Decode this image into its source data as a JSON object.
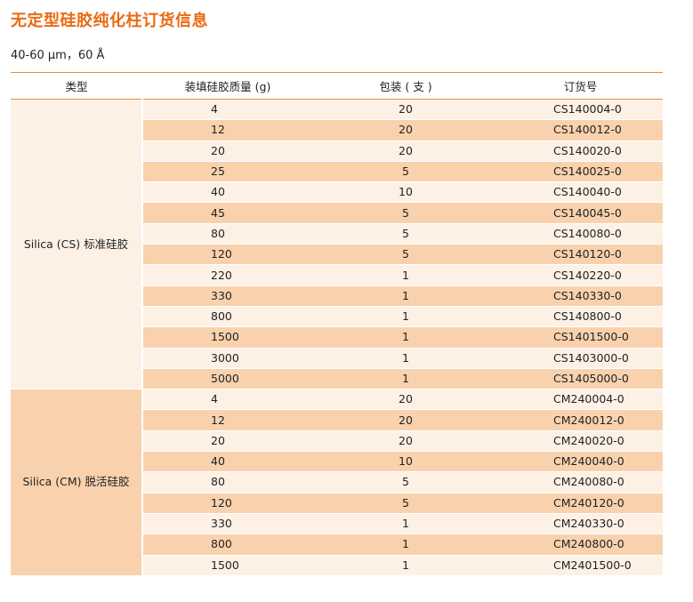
{
  "title": "无定型硅胶纯化柱订货信息",
  "subtitle": "40-60 µm，60 Å",
  "colors": {
    "title": "#ea6a12",
    "rule": "#e98a3a",
    "row_light": "#fdf1e6",
    "row_dark": "#f9d2ad"
  },
  "table": {
    "headers": [
      "类型",
      "装填硅胶质量 (g)",
      "包装 ( 支 )",
      "订货号"
    ],
    "groups": [
      {
        "type": "Silica (CS) 标准硅胶",
        "rows": [
          {
            "mass": "4",
            "pack": "20",
            "order": "CS140004-0"
          },
          {
            "mass": "12",
            "pack": "20",
            "order": "CS140012-0"
          },
          {
            "mass": "20",
            "pack": "20",
            "order": "CS140020-0"
          },
          {
            "mass": "25",
            "pack": "5",
            "order": "CS140025-0"
          },
          {
            "mass": "40",
            "pack": "10",
            "order": "CS140040-0"
          },
          {
            "mass": "45",
            "pack": "5",
            "order": "CS140045-0"
          },
          {
            "mass": "80",
            "pack": "5",
            "order": "CS140080-0"
          },
          {
            "mass": "120",
            "pack": "5",
            "order": "CS140120-0"
          },
          {
            "mass": "220",
            "pack": "1",
            "order": "CS140220-0"
          },
          {
            "mass": "330",
            "pack": "1",
            "order": "CS140330-0"
          },
          {
            "mass": "800",
            "pack": "1",
            "order": "CS140800-0"
          },
          {
            "mass": "1500",
            "pack": "1",
            "order": "CS1401500-0"
          },
          {
            "mass": "3000",
            "pack": "1",
            "order": "CS1403000-0"
          },
          {
            "mass": "5000",
            "pack": "1",
            "order": "CS1405000-0"
          }
        ]
      },
      {
        "type": "Silica (CM)  脱活硅胶",
        "rows": [
          {
            "mass": "4",
            "pack": "20",
            "order": "CM240004-0"
          },
          {
            "mass": "12",
            "pack": "20",
            "order": "CM240012-0"
          },
          {
            "mass": "20",
            "pack": "20",
            "order": "CM240020-0"
          },
          {
            "mass": "40",
            "pack": "10",
            "order": "CM240040-0"
          },
          {
            "mass": "80",
            "pack": "5",
            "order": "CM240080-0"
          },
          {
            "mass": "120",
            "pack": "5",
            "order": "CM240120-0"
          },
          {
            "mass": "330",
            "pack": "1",
            "order": "CM240330-0"
          },
          {
            "mass": "800",
            "pack": "1",
            "order": "CM240800-0"
          },
          {
            "mass": "1500",
            "pack": "1",
            "order": "CM2401500-0"
          }
        ]
      }
    ]
  }
}
